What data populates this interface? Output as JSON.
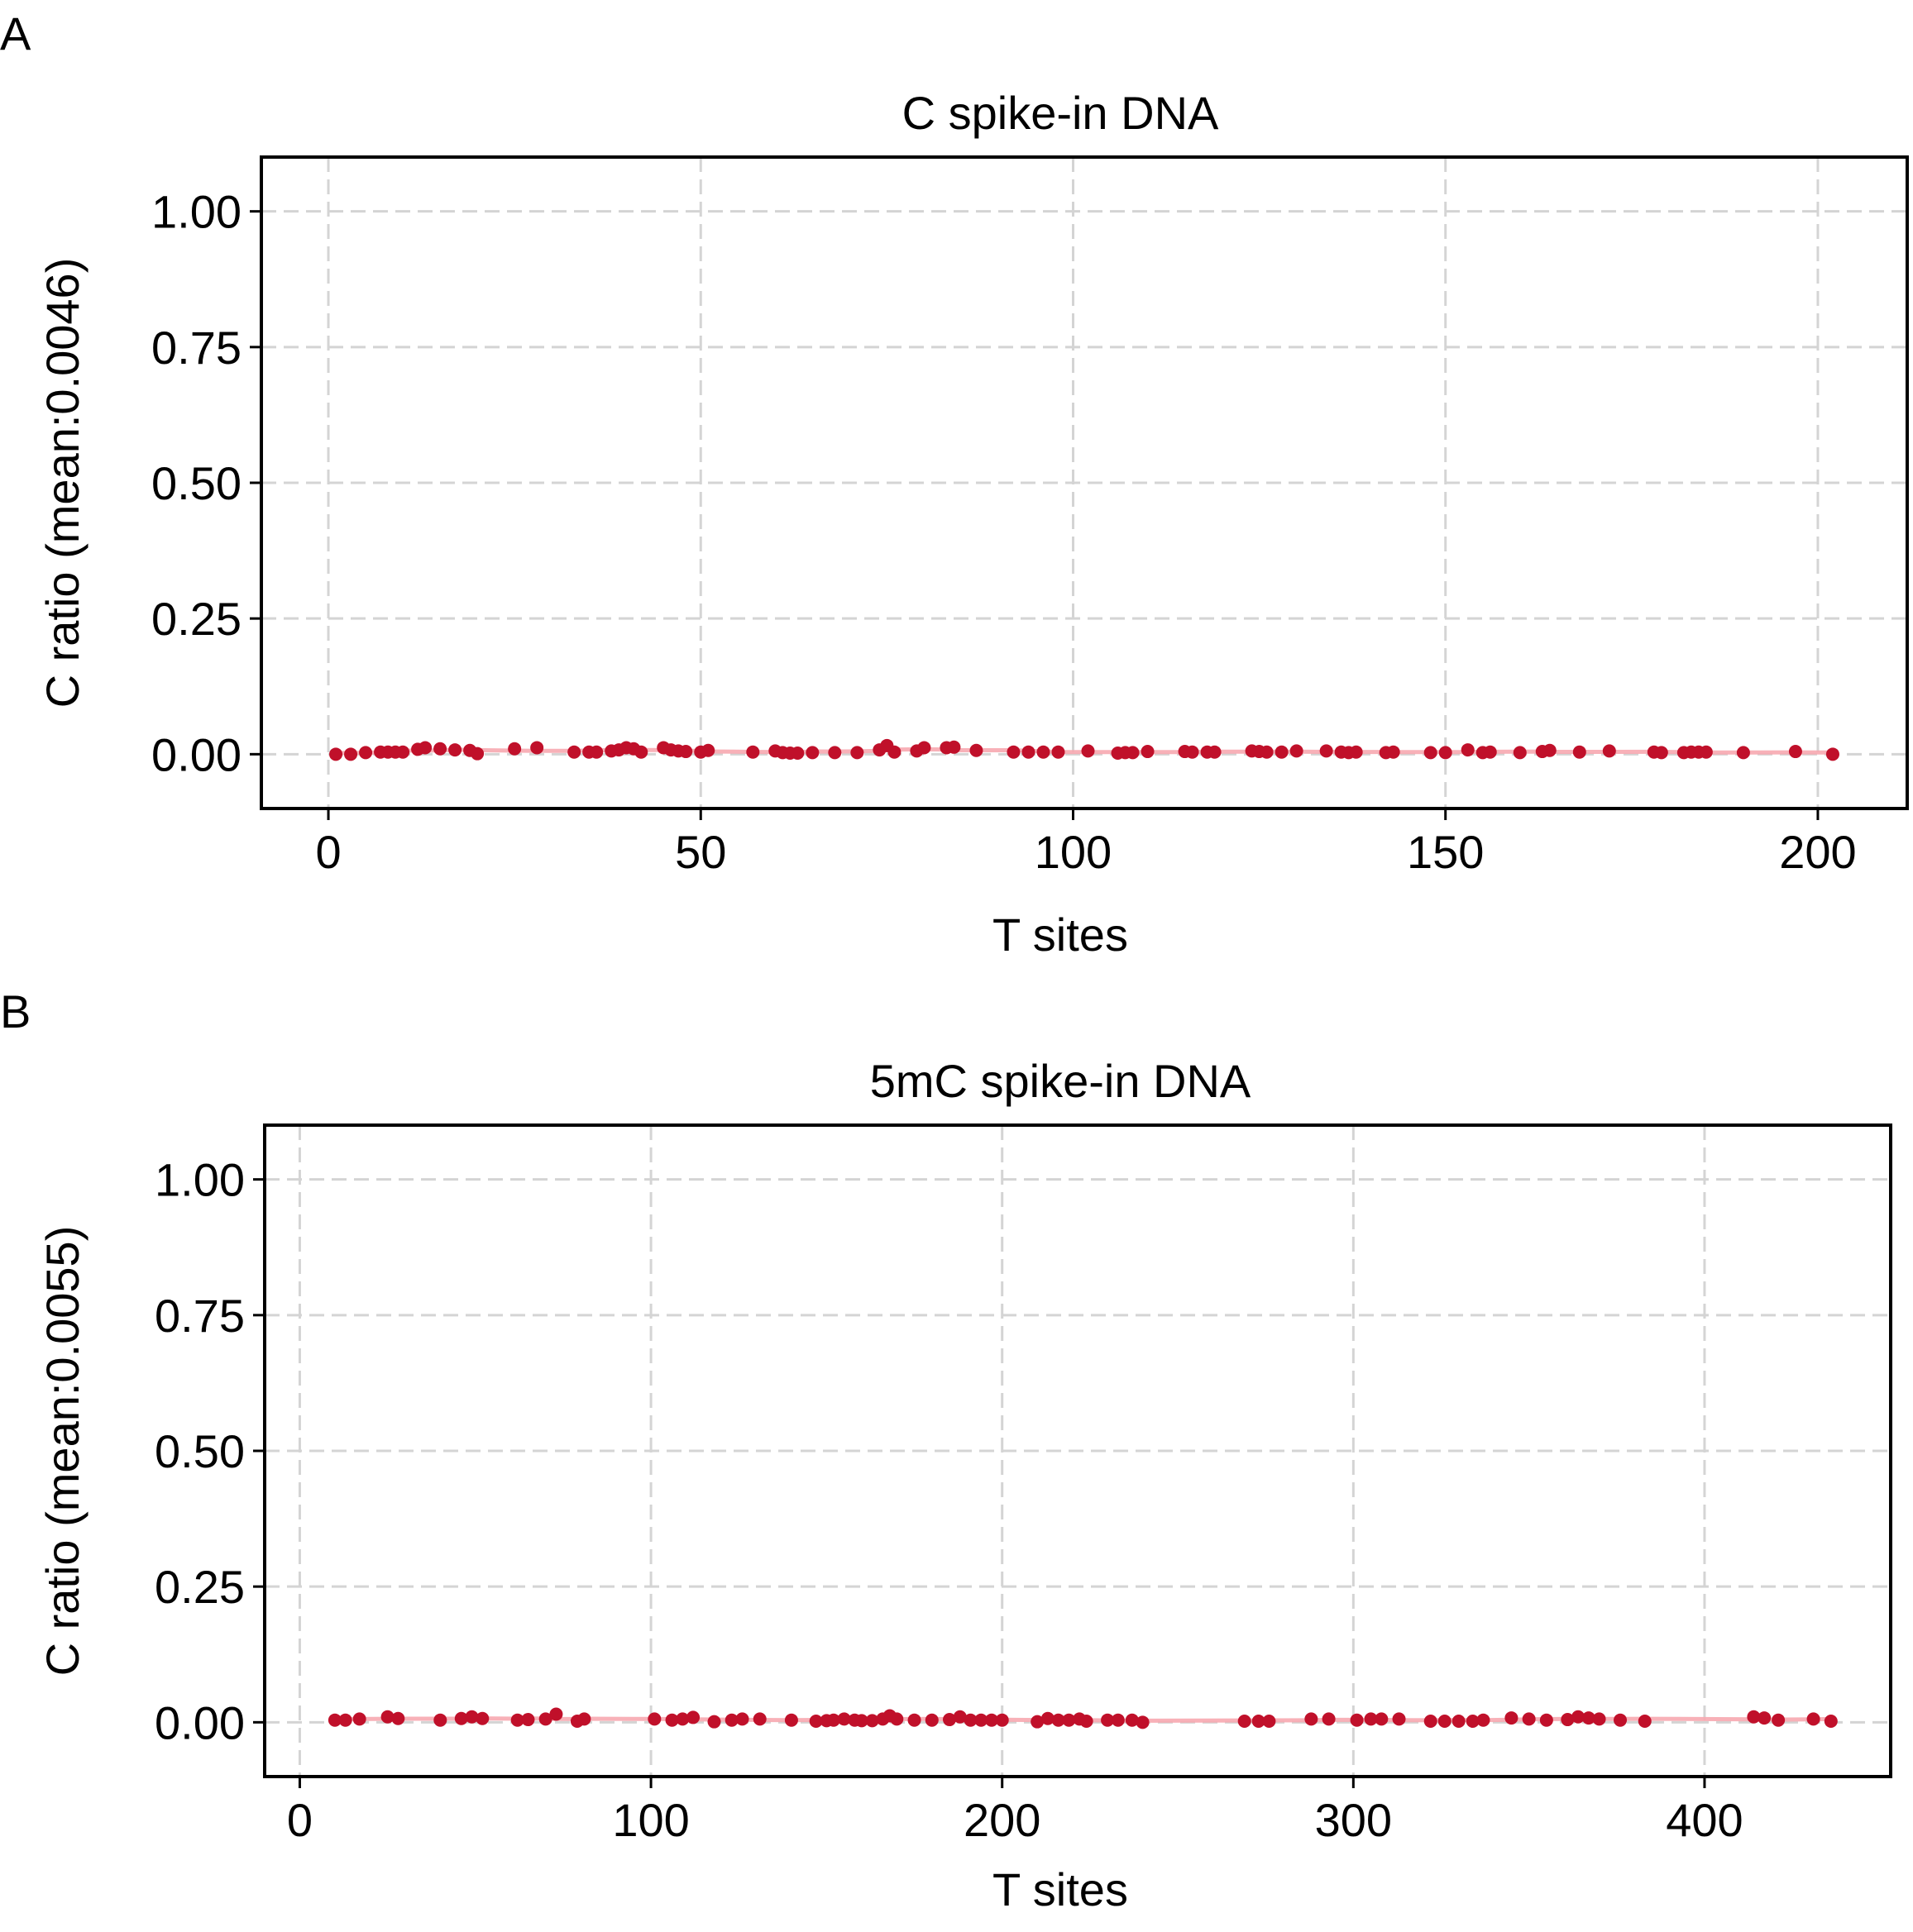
{
  "chart_data": [
    {
      "panel": "A",
      "type": "scatter",
      "title": "C spike-in DNA",
      "xlabel": "T sites",
      "ylabel": "C ratio (mean:0.0046)",
      "xlim": [
        -9,
        212
      ],
      "ylim": [
        -0.1,
        1.1
      ],
      "xticks": [
        0,
        50,
        100,
        150,
        200
      ],
      "yticks": [
        0.0,
        0.25,
        0.5,
        0.75,
        1.0
      ],
      "xtick_labels": [
        "0",
        "50",
        "100",
        "150",
        "200"
      ],
      "ytick_labels": [
        "0.00",
        "0.25",
        "0.50",
        "0.75",
        "1.00"
      ],
      "grid": true,
      "marker_color": "#c0102a",
      "trend_color": "#f7a8b0",
      "x": [
        1,
        3,
        5,
        7,
        8,
        9,
        10,
        12,
        13,
        15,
        17,
        19,
        20,
        25,
        28,
        33,
        35,
        36,
        38,
        39,
        40,
        41,
        42,
        45,
        46,
        47,
        48,
        50,
        51,
        57,
        60,
        61,
        62,
        63,
        65,
        68,
        71,
        74,
        75,
        76,
        79,
        80,
        83,
        84,
        87,
        92,
        94,
        96,
        98,
        102,
        106,
        107,
        108,
        110,
        115,
        116,
        118,
        119,
        124,
        125,
        126,
        128,
        130,
        134,
        136,
        137,
        138,
        142,
        143,
        148,
        150,
        153,
        155,
        156,
        160,
        163,
        164,
        168,
        172,
        178,
        179,
        182,
        183,
        184,
        185,
        190,
        197,
        202
      ],
      "y": [
        0.0,
        0.0,
        0.003,
        0.004,
        0.004,
        0.004,
        0.004,
        0.009,
        0.012,
        0.01,
        0.008,
        0.007,
        0.001,
        0.01,
        0.012,
        0.004,
        0.004,
        0.004,
        0.006,
        0.008,
        0.012,
        0.01,
        0.004,
        0.012,
        0.008,
        0.006,
        0.005,
        0.004,
        0.007,
        0.004,
        0.006,
        0.003,
        0.002,
        0.002,
        0.003,
        0.003,
        0.003,
        0.008,
        0.016,
        0.004,
        0.006,
        0.012,
        0.012,
        0.013,
        0.007,
        0.004,
        0.004,
        0.004,
        0.004,
        0.006,
        0.002,
        0.003,
        0.003,
        0.005,
        0.005,
        0.004,
        0.004,
        0.004,
        0.006,
        0.005,
        0.004,
        0.004,
        0.006,
        0.006,
        0.004,
        0.003,
        0.004,
        0.003,
        0.004,
        0.003,
        0.003,
        0.008,
        0.003,
        0.004,
        0.003,
        0.005,
        0.007,
        0.004,
        0.006,
        0.004,
        0.003,
        0.003,
        0.004,
        0.004,
        0.004,
        0.003,
        0.005,
        0.0
      ]
    },
    {
      "panel": "B",
      "type": "scatter",
      "title": "5mC spike-in DNA",
      "xlabel": "T sites",
      "ylabel": "C ratio (mean:0.0055)",
      "xlim": [
        -10,
        453
      ],
      "ylim": [
        -0.1,
        1.1
      ],
      "xticks": [
        0,
        100,
        200,
        300,
        400
      ],
      "yticks": [
        0.0,
        0.25,
        0.5,
        0.75,
        1.0
      ],
      "xtick_labels": [
        "0",
        "100",
        "200",
        "300",
        "400"
      ],
      "ytick_labels": [
        "0.00",
        "0.25",
        "0.50",
        "0.75",
        "1.00"
      ],
      "grid": true,
      "marker_color": "#c0102a",
      "trend_color": "#f7a8b0",
      "x": [
        10,
        13,
        17,
        25,
        28,
        40,
        46,
        49,
        52,
        62,
        65,
        70,
        73,
        79,
        81,
        101,
        106,
        109,
        112,
        118,
        123,
        126,
        131,
        140,
        147,
        150,
        152,
        155,
        158,
        160,
        163,
        166,
        168,
        170,
        175,
        180,
        185,
        188,
        191,
        194,
        197,
        200,
        210,
        213,
        216,
        219,
        222,
        224,
        230,
        233,
        237,
        240,
        269,
        273,
        276,
        288,
        293,
        301,
        305,
        308,
        313,
        322,
        326,
        330,
        334,
        337,
        345,
        350,
        355,
        361,
        364,
        367,
        370,
        376,
        383,
        414,
        417,
        421,
        431,
        436
      ],
      "y": [
        0.004,
        0.004,
        0.006,
        0.01,
        0.007,
        0.004,
        0.007,
        0.01,
        0.007,
        0.004,
        0.005,
        0.006,
        0.015,
        0.002,
        0.006,
        0.006,
        0.004,
        0.006,
        0.009,
        0.001,
        0.004,
        0.006,
        0.006,
        0.004,
        0.002,
        0.003,
        0.004,
        0.006,
        0.004,
        0.003,
        0.003,
        0.006,
        0.012,
        0.006,
        0.004,
        0.004,
        0.005,
        0.01,
        0.004,
        0.004,
        0.004,
        0.004,
        0.001,
        0.007,
        0.004,
        0.004,
        0.006,
        0.002,
        0.004,
        0.004,
        0.004,
        0.0,
        0.002,
        0.002,
        0.002,
        0.006,
        0.006,
        0.004,
        0.006,
        0.006,
        0.006,
        0.002,
        0.002,
        0.002,
        0.002,
        0.004,
        0.008,
        0.006,
        0.004,
        0.005,
        0.01,
        0.008,
        0.006,
        0.004,
        0.002,
        0.01,
        0.008,
        0.004,
        0.006,
        0.002
      ]
    }
  ]
}
